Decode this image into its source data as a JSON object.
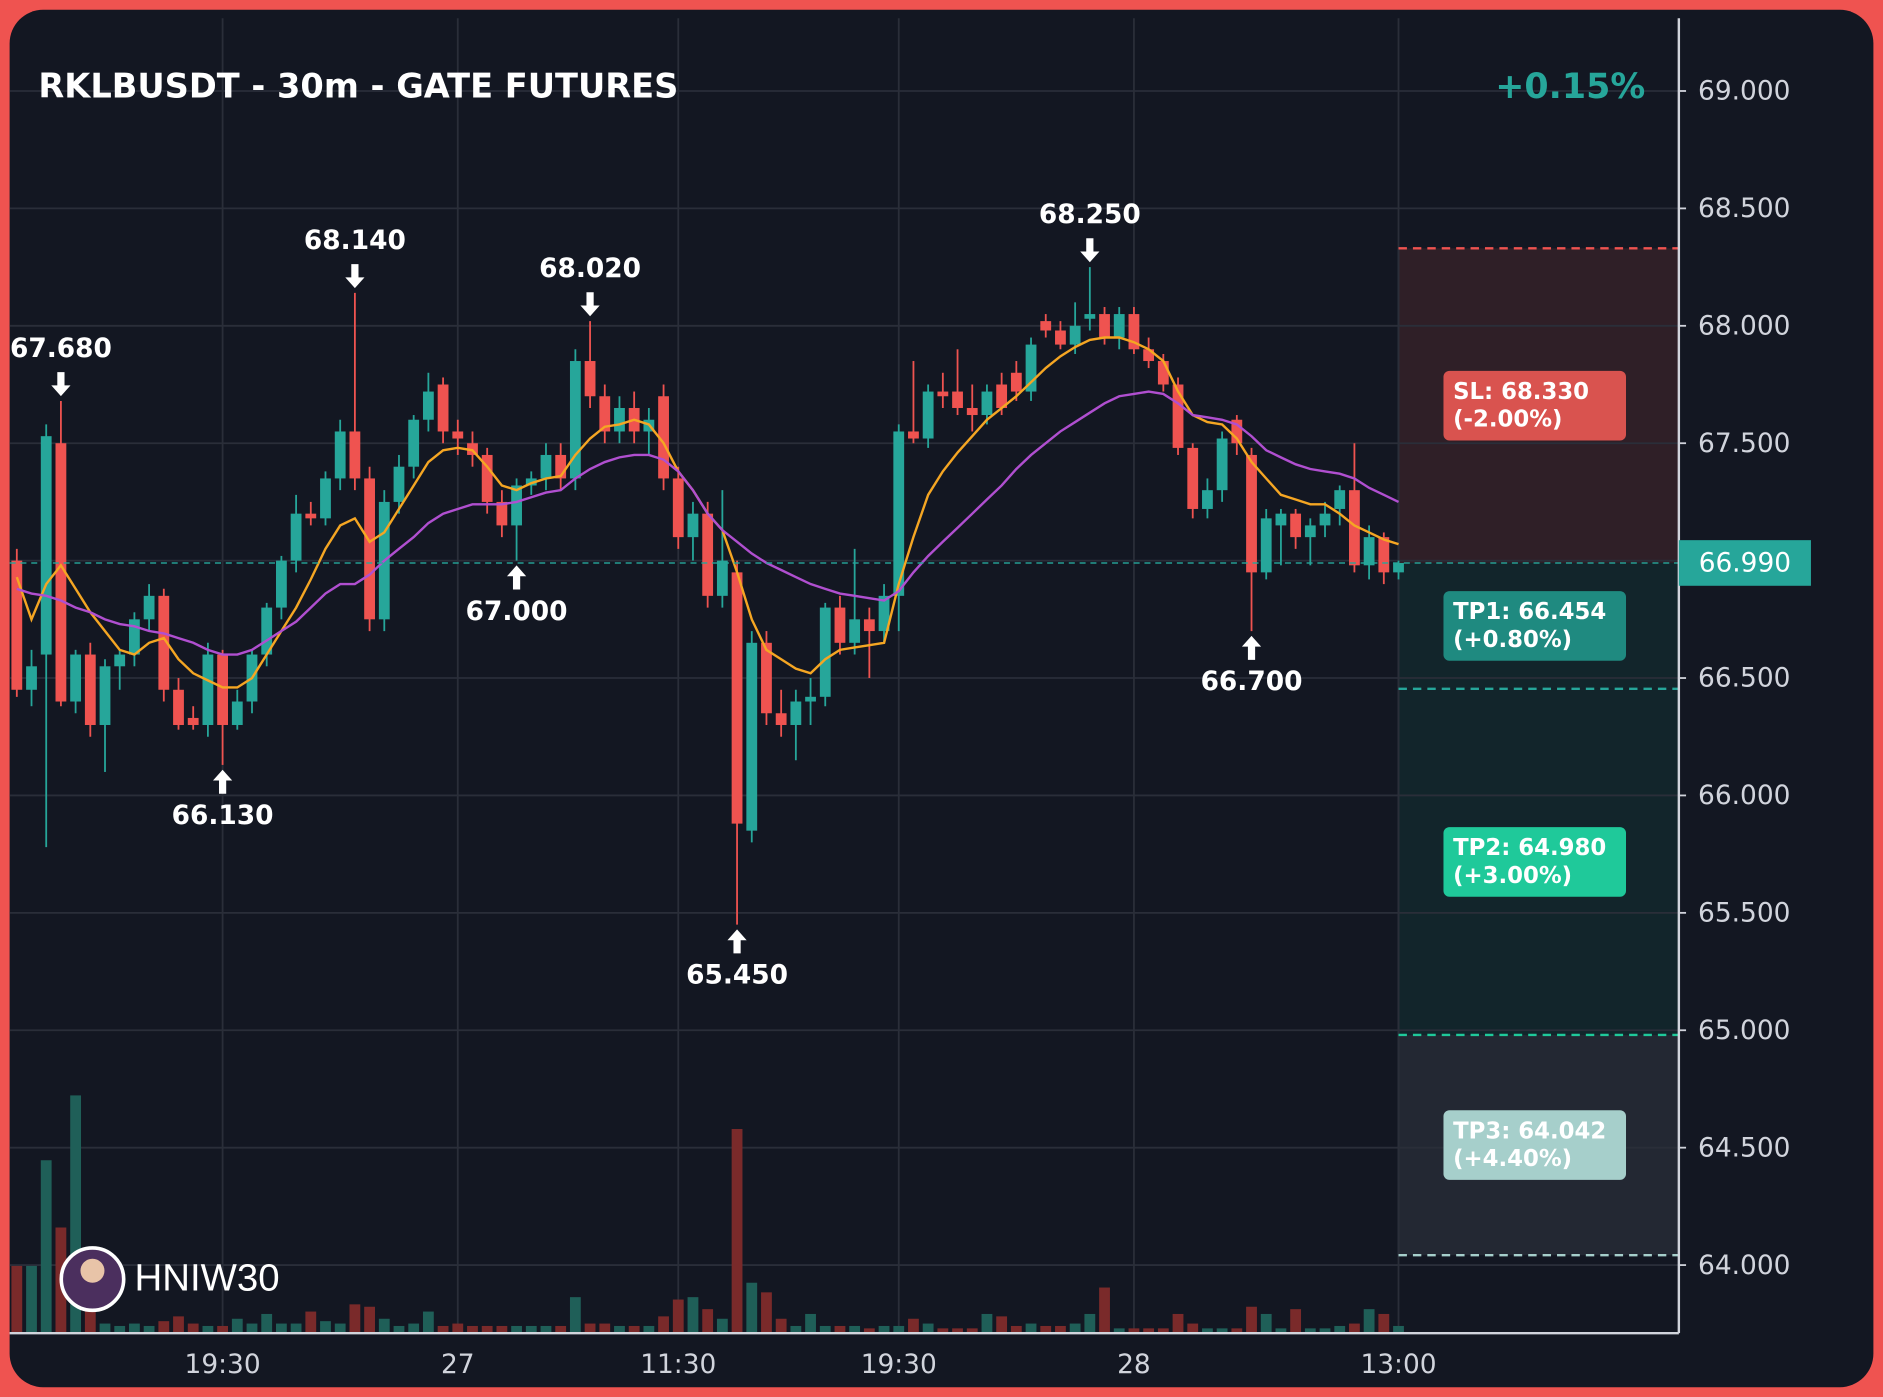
{
  "chart_data": {
    "type": "candlestick",
    "title": "RKLBUSDT - 30m - GATE FUTURES",
    "change": {
      "value": 0.15,
      "label": "+0.15%"
    },
    "watermark": "HNIW30",
    "up_color": "#26a69a",
    "down_color": "#ef5350",
    "volume_up_color": "#1f5f58",
    "volume_down_color": "#7a2a2a",
    "grid": true,
    "categories": [
      null,
      null,
      null,
      null,
      null,
      null,
      null,
      null,
      null,
      null,
      null,
      null,
      null,
      null,
      "19:30",
      null,
      null,
      null,
      null,
      null,
      null,
      null,
      null,
      null,
      null,
      null,
      null,
      null,
      null,
      null,
      "27",
      null,
      null,
      null,
      null,
      null,
      null,
      null,
      null,
      null,
      null,
      null,
      null,
      null,
      null,
      "11:30",
      null,
      null,
      null,
      null,
      null,
      null,
      null,
      null,
      null,
      null,
      null,
      null,
      null,
      null,
      "19:30",
      null,
      null,
      null,
      null,
      null,
      null,
      null,
      null,
      null,
      null,
      null,
      null,
      null,
      null,
      null,
      "28",
      null,
      null,
      null,
      null,
      null,
      null,
      null,
      null,
      null,
      null,
      null,
      null,
      null,
      null,
      null,
      null,
      null,
      "13:00"
    ],
    "open": [
      67.0,
      66.45,
      66.6,
      67.5,
      66.4,
      66.6,
      66.3,
      66.55,
      66.6,
      66.75,
      66.85,
      66.45,
      66.33,
      66.3,
      66.6,
      66.3,
      66.4,
      66.6,
      66.8,
      67.0,
      67.2,
      67.18,
      67.35,
      67.55,
      67.35,
      66.75,
      67.25,
      67.4,
      67.6,
      67.75,
      67.55,
      67.5,
      67.45,
      67.25,
      67.15,
      67.32,
      67.35,
      67.45,
      67.35,
      67.85,
      67.7,
      67.55,
      67.65,
      67.55,
      67.7,
      67.35,
      67.1,
      67.2,
      66.85,
      66.95,
      65.85,
      66.65,
      66.35,
      66.3,
      66.4,
      66.42,
      66.8,
      66.65,
      66.75,
      66.7,
      66.85,
      67.55,
      67.52,
      67.72,
      67.72,
      67.65,
      67.62,
      67.75,
      67.8,
      67.72,
      68.02,
      67.98,
      67.92,
      68.03,
      68.05,
      67.95,
      68.05,
      67.9,
      67.85,
      67.75,
      67.48,
      67.22,
      67.3,
      67.6,
      67.45,
      66.95,
      67.15,
      67.2,
      67.1,
      67.15,
      67.22,
      67.3,
      66.98,
      67.1,
      66.95
    ],
    "high": [
      67.05,
      66.62,
      67.58,
      67.68,
      66.62,
      66.65,
      66.58,
      66.62,
      66.78,
      66.9,
      66.88,
      66.5,
      66.38,
      66.65,
      66.62,
      66.45,
      66.62,
      66.82,
      67.02,
      67.28,
      67.25,
      67.38,
      67.6,
      68.14,
      67.4,
      67.3,
      67.45,
      67.62,
      67.8,
      67.78,
      67.6,
      67.55,
      67.48,
      67.3,
      67.35,
      67.38,
      67.5,
      67.5,
      67.9,
      68.02,
      67.75,
      67.7,
      67.72,
      67.65,
      67.75,
      67.4,
      67.25,
      67.25,
      67.3,
      67.0,
      66.7,
      66.7,
      66.45,
      66.45,
      66.5,
      66.82,
      66.85,
      67.05,
      66.8,
      66.9,
      67.58,
      67.85,
      67.75,
      67.8,
      67.9,
      67.75,
      67.75,
      67.8,
      67.85,
      67.95,
      68.05,
      68.02,
      68.1,
      68.25,
      68.08,
      68.08,
      68.08,
      67.95,
      67.88,
      67.78,
      67.5,
      67.35,
      67.55,
      67.62,
      67.48,
      67.22,
      67.22,
      67.22,
      67.18,
      67.25,
      67.32,
      67.5,
      67.15,
      67.12,
      67.0
    ],
    "low": [
      66.42,
      66.38,
      65.78,
      66.38,
      66.35,
      66.25,
      66.1,
      66.45,
      66.55,
      66.7,
      66.4,
      66.28,
      66.28,
      66.25,
      66.13,
      66.28,
      66.35,
      66.55,
      66.75,
      66.95,
      67.15,
      67.15,
      67.3,
      67.3,
      66.7,
      66.7,
      67.2,
      67.35,
      67.55,
      67.5,
      67.45,
      67.4,
      67.2,
      67.1,
      67.0,
      67.28,
      67.3,
      67.3,
      67.3,
      67.65,
      67.5,
      67.5,
      67.5,
      67.45,
      67.3,
      67.05,
      67.0,
      66.8,
      66.8,
      65.45,
      65.8,
      66.3,
      66.25,
      66.15,
      66.3,
      66.38,
      66.6,
      66.6,
      66.5,
      66.65,
      66.7,
      67.5,
      67.48,
      67.65,
      67.62,
      67.55,
      67.58,
      67.62,
      67.68,
      67.68,
      67.95,
      67.9,
      67.88,
      67.98,
      67.92,
      67.9,
      67.88,
      67.82,
      67.72,
      67.45,
      67.18,
      67.18,
      67.25,
      67.45,
      66.7,
      66.92,
      66.98,
      67.05,
      66.98,
      67.1,
      67.15,
      66.95,
      66.92,
      66.9,
      66.92
    ],
    "close": [
      66.45,
      66.55,
      67.53,
      66.4,
      66.6,
      66.3,
      66.55,
      66.6,
      66.75,
      66.85,
      66.45,
      66.3,
      66.3,
      66.6,
      66.3,
      66.4,
      66.6,
      66.8,
      67.0,
      67.2,
      67.18,
      67.35,
      67.55,
      67.35,
      66.75,
      67.25,
      67.4,
      67.6,
      67.72,
      67.55,
      67.52,
      67.45,
      67.25,
      67.15,
      67.32,
      67.35,
      67.45,
      67.35,
      67.85,
      67.7,
      67.55,
      67.65,
      67.55,
      67.6,
      67.35,
      67.1,
      67.2,
      66.85,
      67.0,
      65.88,
      66.65,
      66.35,
      66.3,
      66.4,
      66.42,
      66.8,
      66.65,
      66.75,
      66.7,
      66.85,
      67.55,
      67.52,
      67.72,
      67.7,
      67.65,
      67.62,
      67.72,
      67.65,
      67.72,
      67.92,
      67.98,
      67.92,
      68.0,
      68.05,
      67.95,
      68.05,
      67.9,
      67.85,
      67.75,
      67.48,
      67.22,
      67.3,
      67.52,
      67.5,
      66.95,
      67.18,
      67.2,
      67.1,
      67.15,
      67.2,
      67.3,
      66.98,
      67.1,
      66.95,
      66.99
    ],
    "volume": [
      28,
      28,
      72,
      44,
      99,
      10,
      4,
      3,
      4,
      3,
      5,
      7,
      4,
      3,
      3,
      6,
      4,
      8,
      4,
      4,
      9,
      5,
      4,
      12,
      11,
      6,
      3,
      4,
      9,
      3,
      4,
      3,
      3,
      3,
      3,
      3,
      3,
      3,
      15,
      4,
      4,
      3,
      3,
      3,
      7,
      14,
      15,
      10,
      6,
      85,
      21,
      17,
      6,
      3,
      8,
      3,
      3,
      3,
      2,
      3,
      3,
      6,
      4,
      2,
      2,
      2,
      8,
      7,
      3,
      4,
      3,
      3,
      4,
      8,
      19,
      2,
      2,
      2,
      2,
      8,
      4,
      2,
      2,
      2,
      11,
      8,
      2,
      10,
      2,
      2,
      3,
      4,
      10,
      8,
      3
    ],
    "volume_lim": [
      0,
      100
    ],
    "lines": [
      {
        "color": "#f5a623",
        "values": [
          66.93,
          66.75,
          66.9,
          66.98,
          66.88,
          66.78,
          66.7,
          66.62,
          66.6,
          66.65,
          66.67,
          66.58,
          66.52,
          66.49,
          66.46,
          66.46,
          66.5,
          66.6,
          66.7,
          66.8,
          66.92,
          67.05,
          67.15,
          67.18,
          67.08,
          67.12,
          67.22,
          67.32,
          67.42,
          67.47,
          67.48,
          67.47,
          67.4,
          67.32,
          67.3,
          67.33,
          67.35,
          67.36,
          67.45,
          67.52,
          67.57,
          67.58,
          67.6,
          67.58,
          67.5,
          67.38,
          67.3,
          67.2,
          67.13,
          66.95,
          66.75,
          66.62,
          66.58,
          66.54,
          66.52,
          66.58,
          66.62,
          66.63,
          66.64,
          66.65,
          66.9,
          67.1,
          67.28,
          67.38,
          67.46,
          67.53,
          67.6,
          67.65,
          67.7,
          67.76,
          67.82,
          67.87,
          67.91,
          67.94,
          67.95,
          67.95,
          67.93,
          67.9,
          67.85,
          67.72,
          67.62,
          67.59,
          67.58,
          67.52,
          67.42,
          67.35,
          67.28,
          67.26,
          67.24,
          67.24,
          67.2,
          67.15,
          67.12,
          67.09,
          67.07
        ]
      },
      {
        "color": "#b04fd0",
        "values": [
          66.88,
          66.86,
          66.85,
          66.83,
          66.8,
          66.78,
          66.75,
          66.73,
          66.72,
          66.7,
          66.69,
          66.67,
          66.65,
          66.62,
          66.6,
          66.6,
          66.62,
          66.66,
          66.7,
          66.74,
          66.8,
          66.86,
          66.9,
          66.9,
          66.94,
          67.0,
          67.05,
          67.1,
          67.16,
          67.2,
          67.22,
          67.24,
          67.24,
          67.24,
          67.25,
          67.27,
          67.29,
          67.3,
          67.35,
          67.39,
          67.42,
          67.44,
          67.45,
          67.45,
          67.43,
          67.38,
          67.3,
          67.2,
          67.13,
          67.08,
          67.03,
          66.99,
          66.96,
          66.93,
          66.9,
          66.88,
          66.86,
          66.85,
          66.84,
          66.83,
          66.87,
          66.95,
          67.02,
          67.08,
          67.14,
          67.2,
          67.26,
          67.32,
          67.39,
          67.45,
          67.5,
          67.55,
          67.59,
          67.63,
          67.67,
          67.7,
          67.71,
          67.72,
          67.71,
          67.67,
          67.62,
          67.61,
          67.6,
          67.58,
          67.53,
          67.47,
          67.44,
          67.41,
          67.39,
          67.38,
          67.37,
          67.35,
          67.31,
          67.28,
          67.25
        ]
      }
    ],
    "ylim": [
      63.71,
      69.31
    ],
    "yticks": [
      {
        "value": 64.0,
        "label": "64.000"
      },
      {
        "value": 64.5,
        "label": "64.500"
      },
      {
        "value": 65.0,
        "label": "65.000"
      },
      {
        "value": 65.5,
        "label": "65.500"
      },
      {
        "value": 66.0,
        "label": "66.000"
      },
      {
        "value": 66.5,
        "label": "66.500"
      },
      {
        "value": 67.0,
        "label": "67.000"
      },
      {
        "value": 67.5,
        "label": "67.500"
      },
      {
        "value": 68.0,
        "label": "68.000"
      },
      {
        "value": 68.5,
        "label": "68.500"
      },
      {
        "value": 69.0,
        "label": "69.000"
      }
    ],
    "annotations": [
      {
        "index": 3,
        "value": 67.68,
        "label": "67.680",
        "side": "high"
      },
      {
        "index": 14,
        "value": 66.13,
        "label": "66.130",
        "side": "low"
      },
      {
        "index": 23,
        "value": 68.14,
        "label": "68.140",
        "side": "high"
      },
      {
        "index": 34,
        "value": 67.0,
        "label": "67.000",
        "side": "low"
      },
      {
        "index": 39,
        "value": 68.02,
        "label": "68.020",
        "side": "high"
      },
      {
        "index": 49,
        "value": 65.45,
        "label": "65.450",
        "side": "low"
      },
      {
        "index": 73,
        "value": 68.25,
        "label": "68.250",
        "side": "high"
      },
      {
        "index": 84,
        "value": 66.7,
        "label": "66.700",
        "side": "low"
      }
    ],
    "entry": {
      "value": 66.99,
      "label": "66.990",
      "color": "#26a69a"
    },
    "levels": [
      {
        "value": 68.33,
        "label": [
          "SL: 68.330",
          "(-2.00%)"
        ],
        "color": "#d9534f",
        "line_color": "#ef5350",
        "zone_color": "#2f1f27",
        "from": "entry"
      },
      {
        "value": 66.454,
        "label": [
          "TP1: 66.454",
          "(+0.80%)"
        ],
        "color": "#1f8a80",
        "line_color": "#26a69a",
        "zone_color": "#12252b",
        "from": "entry"
      },
      {
        "value": 64.98,
        "label": [
          "TP2: 64.980",
          "(+3.00%)"
        ],
        "color": "#1fc99a",
        "line_color": "#1fc99a",
        "zone_color": "#12252b",
        "from": "previous"
      },
      {
        "value": 64.042,
        "label": [
          "TP3: 64.042",
          "(+4.40%)"
        ],
        "color": "#a6cfcb",
        "line_color": "#a6cfcb",
        "zone_color": "#232833",
        "from": "previous"
      }
    ]
  }
}
